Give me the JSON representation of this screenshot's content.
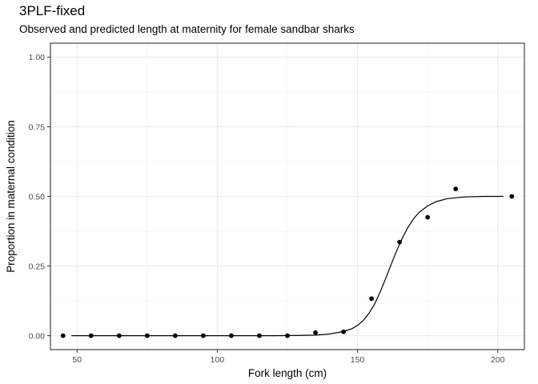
{
  "chart_data": {
    "type": "scatter",
    "title": "3PLF-fixed",
    "subtitle": "Observed and predicted length at maternity for female sandbar sharks",
    "xlabel": "Fork length (cm)",
    "ylabel": "Proportion in maternal condition",
    "xlim": [
      40.5,
      209.5
    ],
    "ylim": [
      -0.05,
      1.05
    ],
    "x_ticks": [
      50,
      100,
      150,
      200
    ],
    "x_tick_labels": [
      "50",
      "100",
      "150",
      "200"
    ],
    "y_ticks": [
      0,
      0.25,
      0.5,
      0.75,
      1.0
    ],
    "y_tick_labels": [
      "0.00",
      "0.25",
      "0.50",
      "0.75",
      "1.00"
    ],
    "grid": true,
    "series": [
      {
        "type": "scatter",
        "x": [
          45,
          55,
          65,
          75,
          85,
          95,
          105,
          115,
          125,
          135,
          145,
          155,
          165,
          175,
          185,
          205
        ],
        "y": [
          0.0,
          0.0,
          0.0,
          0.0,
          0.0,
          0.0,
          0.0,
          0.0,
          0.0,
          0.011,
          0.014,
          0.133,
          0.336,
          0.425,
          0.527,
          0.5
        ]
      },
      {
        "type": "line",
        "x": [
          48,
          60,
          80,
          100,
          120,
          130,
          135,
          140,
          145,
          148,
          150,
          152,
          154,
          156,
          158,
          160,
          162,
          164,
          166,
          168,
          170,
          172,
          175,
          178,
          182,
          188,
          195,
          202
        ],
        "y": [
          0.0,
          0.0,
          0.0,
          0.0,
          0.0,
          0.001,
          0.002,
          0.006,
          0.015,
          0.025,
          0.037,
          0.054,
          0.079,
          0.112,
          0.155,
          0.204,
          0.256,
          0.306,
          0.351,
          0.389,
          0.42,
          0.443,
          0.466,
          0.481,
          0.492,
          0.498,
          0.5,
          0.5
        ]
      }
    ]
  }
}
